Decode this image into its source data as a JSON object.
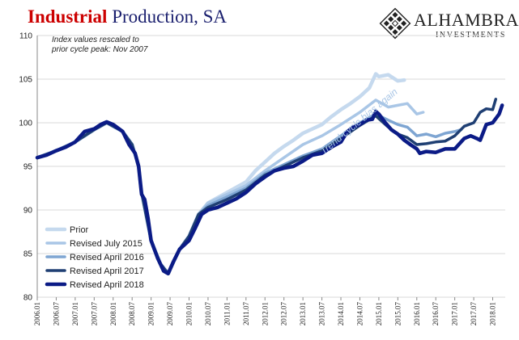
{
  "header": {
    "title_part1": "Industrial",
    "title_part2": "Production, SA",
    "note_line1": "Index values rescaled to",
    "note_line2": "prior cycle peak: Nov 2007"
  },
  "logo": {
    "name": "ALHAMBRA",
    "subtitle": "INVESTMENTS",
    "icon": "diamond-grid-logo-icon"
  },
  "colors": {
    "title_red": "#cc0000",
    "title_navy": "#1a1f6e",
    "prior": "#c5d9ee",
    "revised_2015": "#a9c6e6",
    "revised_2016": "#7ea5d2",
    "revised_2017": "#1f3f73",
    "revised_2018": "#0b1b86",
    "annotation": "#a9c6e6"
  },
  "chart_data": {
    "type": "line",
    "xlabel": "",
    "ylabel": "",
    "ylim": [
      80,
      110
    ],
    "yticks": [
      "80",
      "85",
      "90",
      "95",
      "100",
      "105",
      "110"
    ],
    "xlim": [
      2006.0,
      2018.33
    ],
    "xticks": [
      "2006.01",
      "2006.07",
      "2007.01",
      "2007.07",
      "2008.01",
      "2008.07",
      "2009.01",
      "2009.07",
      "2010.01",
      "2010.07",
      "2011.01",
      "2011.07",
      "2012.01",
      "2012.07",
      "2013.01",
      "2013.07",
      "2014.01",
      "2014.07",
      "2015.01",
      "2015.07",
      "2016.01",
      "2016.07",
      "2017.01",
      "2017.07",
      "2018.01"
    ],
    "grid": "horizontal",
    "legend_position": "bottom-left",
    "annotation": "Trend-cycle bias again",
    "series": [
      {
        "name": "Prior",
        "points": [
          [
            2006.0,
            96.0
          ],
          [
            2006.5,
            96.8
          ],
          [
            2007.0,
            97.8
          ],
          [
            2007.5,
            99.2
          ],
          [
            2007.83,
            100.0
          ],
          [
            2008.25,
            99.0
          ],
          [
            2008.5,
            97.5
          ],
          [
            2008.67,
            95.0
          ],
          [
            2008.75,
            92.0
          ],
          [
            2009.0,
            86.5
          ],
          [
            2009.25,
            83.8
          ],
          [
            2009.45,
            82.7
          ],
          [
            2009.75,
            85.5
          ],
          [
            2010.0,
            87.0
          ],
          [
            2010.25,
            89.5
          ],
          [
            2010.5,
            90.8
          ],
          [
            2011.0,
            92.0
          ],
          [
            2011.5,
            93.2
          ],
          [
            2011.75,
            94.5
          ],
          [
            2012.0,
            95.5
          ],
          [
            2012.25,
            96.5
          ],
          [
            2012.5,
            97.3
          ],
          [
            2012.75,
            98.0
          ],
          [
            2013.0,
            98.8
          ],
          [
            2013.5,
            99.8
          ],
          [
            2013.75,
            100.7
          ],
          [
            2014.0,
            101.5
          ],
          [
            2014.25,
            102.2
          ],
          [
            2014.5,
            103.0
          ],
          [
            2014.75,
            104.0
          ],
          [
            2014.92,
            105.6
          ],
          [
            2015.0,
            105.3
          ],
          [
            2015.25,
            105.5
          ],
          [
            2015.5,
            104.8
          ],
          [
            2015.67,
            104.9
          ]
        ]
      },
      {
        "name": "Revised July 2015",
        "points": [
          [
            2006.0,
            96.0
          ],
          [
            2006.5,
            96.8
          ],
          [
            2007.0,
            97.8
          ],
          [
            2007.5,
            99.2
          ],
          [
            2007.83,
            100.0
          ],
          [
            2008.25,
            99.0
          ],
          [
            2008.5,
            97.5
          ],
          [
            2008.67,
            95.0
          ],
          [
            2008.75,
            92.0
          ],
          [
            2009.0,
            86.5
          ],
          [
            2009.25,
            83.8
          ],
          [
            2009.45,
            82.7
          ],
          [
            2009.75,
            85.5
          ],
          [
            2010.0,
            87.0
          ],
          [
            2010.25,
            89.5
          ],
          [
            2010.5,
            90.8
          ],
          [
            2011.0,
            91.8
          ],
          [
            2011.5,
            92.8
          ],
          [
            2012.0,
            94.5
          ],
          [
            2012.5,
            96.0
          ],
          [
            2013.0,
            97.5
          ],
          [
            2013.5,
            98.5
          ],
          [
            2014.0,
            99.8
          ],
          [
            2014.5,
            101.2
          ],
          [
            2014.92,
            102.6
          ],
          [
            2015.25,
            101.8
          ],
          [
            2015.5,
            102.0
          ],
          [
            2015.75,
            102.2
          ],
          [
            2016.0,
            101.0
          ],
          [
            2016.17,
            101.2
          ]
        ]
      },
      {
        "name": "Revised April 2016",
        "points": [
          [
            2006.0,
            96.0
          ],
          [
            2006.5,
            96.8
          ],
          [
            2007.0,
            97.8
          ],
          [
            2007.5,
            99.2
          ],
          [
            2007.83,
            100.0
          ],
          [
            2008.25,
            99.0
          ],
          [
            2008.5,
            97.5
          ],
          [
            2008.67,
            95.0
          ],
          [
            2008.75,
            92.0
          ],
          [
            2009.0,
            86.5
          ],
          [
            2009.25,
            83.8
          ],
          [
            2009.45,
            82.7
          ],
          [
            2009.75,
            85.5
          ],
          [
            2010.0,
            87.0
          ],
          [
            2010.25,
            89.5
          ],
          [
            2010.5,
            90.5
          ],
          [
            2011.0,
            91.5
          ],
          [
            2011.5,
            92.5
          ],
          [
            2012.0,
            94.2
          ],
          [
            2012.5,
            95.2
          ],
          [
            2013.0,
            96.2
          ],
          [
            2013.5,
            97.0
          ],
          [
            2014.0,
            98.5
          ],
          [
            2014.5,
            100.0
          ],
          [
            2014.92,
            101.0
          ],
          [
            2015.25,
            100.3
          ],
          [
            2015.5,
            99.8
          ],
          [
            2015.75,
            99.5
          ],
          [
            2016.0,
            98.5
          ],
          [
            2016.25,
            98.7
          ],
          [
            2016.5,
            98.4
          ],
          [
            2016.75,
            98.8
          ],
          [
            2017.0,
            99.0
          ],
          [
            2017.17,
            99.2
          ]
        ]
      },
      {
        "name": "Revised April 2017",
        "points": [
          [
            2006.0,
            96.0
          ],
          [
            2006.5,
            96.8
          ],
          [
            2007.0,
            97.8
          ],
          [
            2007.5,
            99.2
          ],
          [
            2007.83,
            100.0
          ],
          [
            2008.25,
            99.0
          ],
          [
            2008.5,
            97.5
          ],
          [
            2008.67,
            95.0
          ],
          [
            2008.75,
            92.0
          ],
          [
            2009.0,
            86.5
          ],
          [
            2009.25,
            83.8
          ],
          [
            2009.45,
            82.7
          ],
          [
            2009.75,
            85.5
          ],
          [
            2010.0,
            87.0
          ],
          [
            2010.25,
            89.5
          ],
          [
            2010.5,
            90.3
          ],
          [
            2011.0,
            91.2
          ],
          [
            2011.5,
            92.3
          ],
          [
            2012.0,
            94.0
          ],
          [
            2012.5,
            95.0
          ],
          [
            2013.0,
            96.0
          ],
          [
            2013.5,
            96.8
          ],
          [
            2014.0,
            98.2
          ],
          [
            2014.5,
            99.7
          ],
          [
            2014.92,
            100.8
          ],
          [
            2015.25,
            99.5
          ],
          [
            2015.5,
            98.7
          ],
          [
            2015.75,
            98.3
          ],
          [
            2016.0,
            97.5
          ],
          [
            2016.25,
            97.6
          ],
          [
            2016.5,
            97.8
          ],
          [
            2016.75,
            97.9
          ],
          [
            2017.0,
            98.5
          ],
          [
            2017.25,
            99.6
          ],
          [
            2017.5,
            100.0
          ],
          [
            2017.67,
            101.2
          ],
          [
            2017.83,
            101.6
          ],
          [
            2018.0,
            101.5
          ],
          [
            2018.08,
            102.7
          ]
        ]
      },
      {
        "name": "Revised April 2018",
        "points": [
          [
            2006.0,
            96.0
          ],
          [
            2006.25,
            96.3
          ],
          [
            2006.5,
            96.8
          ],
          [
            2006.75,
            97.2
          ],
          [
            2007.0,
            97.8
          ],
          [
            2007.25,
            99.0
          ],
          [
            2007.5,
            99.3
          ],
          [
            2007.67,
            99.8
          ],
          [
            2007.83,
            100.1
          ],
          [
            2008.0,
            99.8
          ],
          [
            2008.25,
            99.0
          ],
          [
            2008.42,
            97.5
          ],
          [
            2008.58,
            96.5
          ],
          [
            2008.67,
            95.0
          ],
          [
            2008.75,
            91.8
          ],
          [
            2008.83,
            91.2
          ],
          [
            2008.92,
            89.0
          ],
          [
            2009.0,
            86.5
          ],
          [
            2009.17,
            84.5
          ],
          [
            2009.33,
            83.0
          ],
          [
            2009.45,
            82.7
          ],
          [
            2009.58,
            84.0
          ],
          [
            2009.75,
            85.5
          ],
          [
            2010.0,
            86.5
          ],
          [
            2010.17,
            88.0
          ],
          [
            2010.33,
            89.5
          ],
          [
            2010.5,
            90.0
          ],
          [
            2010.75,
            90.3
          ],
          [
            2011.0,
            90.8
          ],
          [
            2011.25,
            91.3
          ],
          [
            2011.5,
            92.0
          ],
          [
            2011.75,
            93.0
          ],
          [
            2012.0,
            93.8
          ],
          [
            2012.25,
            94.5
          ],
          [
            2012.5,
            94.8
          ],
          [
            2012.75,
            95.0
          ],
          [
            2013.0,
            95.6
          ],
          [
            2013.25,
            96.3
          ],
          [
            2013.5,
            96.5
          ],
          [
            2013.75,
            97.2
          ],
          [
            2014.0,
            97.8
          ],
          [
            2014.17,
            99.0
          ],
          [
            2014.33,
            99.5
          ],
          [
            2014.5,
            99.8
          ],
          [
            2014.67,
            100.3
          ],
          [
            2014.83,
            100.4
          ],
          [
            2014.92,
            101.3
          ],
          [
            2015.0,
            101.0
          ],
          [
            2015.17,
            100.0
          ],
          [
            2015.33,
            99.2
          ],
          [
            2015.5,
            98.7
          ],
          [
            2015.67,
            98.0
          ],
          [
            2015.83,
            97.5
          ],
          [
            2016.0,
            97.0
          ],
          [
            2016.08,
            96.5
          ],
          [
            2016.25,
            96.7
          ],
          [
            2016.5,
            96.6
          ],
          [
            2016.75,
            97.0
          ],
          [
            2017.0,
            97.0
          ],
          [
            2017.25,
            98.2
          ],
          [
            2017.42,
            98.5
          ],
          [
            2017.58,
            98.2
          ],
          [
            2017.67,
            98.0
          ],
          [
            2017.83,
            99.8
          ],
          [
            2018.0,
            100.0
          ],
          [
            2018.17,
            101.0
          ],
          [
            2018.25,
            102.0
          ]
        ]
      }
    ]
  }
}
